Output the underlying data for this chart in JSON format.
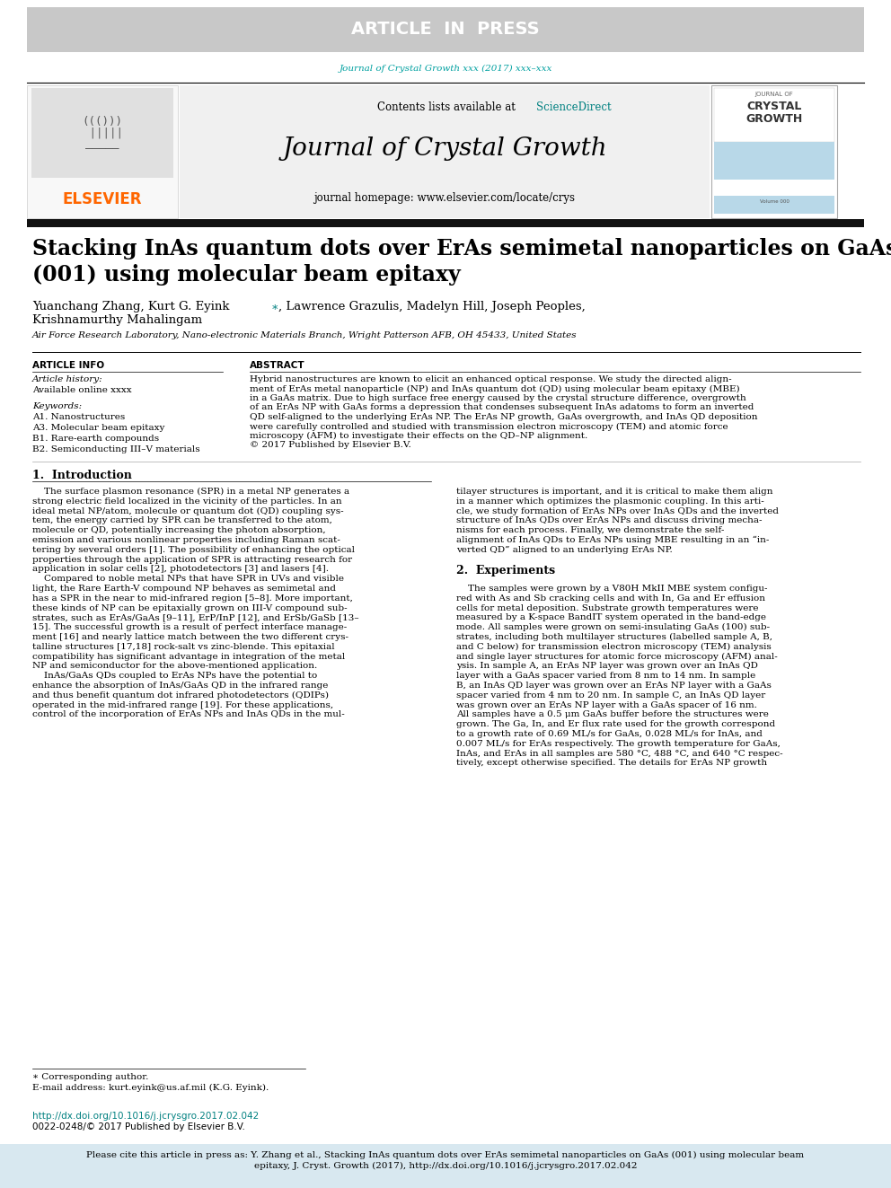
{
  "article_in_press_bg": "#c8c8c8",
  "article_in_press_text": "ARTICLE  IN  PRESS",
  "article_in_press_color": "#ffffff",
  "journal_citation": "Journal of Crystal Growth xxx (2017) xxx–xxx",
  "journal_citation_color": "#00a0a0",
  "journal_name": "Journal of Crystal Growth",
  "journal_homepage": "journal homepage: www.elsevier.com/locate/crys",
  "contents_line": "Contents lists available at ",
  "elsevier_color": "#ff6600",
  "sciencedirect_color": "#008080",
  "header_bg": "#f0f0f0",
  "black_bar_color": "#111111",
  "paper_title": "Stacking InAs quantum dots over ErAs semimetal nanoparticles on GaAs\n(001) using molecular beam epitaxy",
  "affiliation": "Air Force Research Laboratory, Nano-electronic Materials Branch, Wright Patterson AFB, OH 45433, United States",
  "article_info_header": "ARTICLE INFO",
  "abstract_header": "ABSTRACT",
  "keywords": "A1. Nanostructures\nA3. Molecular beam epitaxy\nB1. Rare-earth compounds\nB2. Semiconducting III–V materials",
  "footnote_star": "∗ Corresponding author.",
  "footnote_email": "E-mail address: kurt.eyink@us.af.mil (K.G. Eyink).",
  "doi_text": "http://dx.doi.org/10.1016/j.jcrysgro.2017.02.042",
  "issn_text": "0022-0248/© 2017 Published by Elsevier B.V.",
  "bottom_bar_text1": "Please cite this article in press as: Y. Zhang et al., Stacking InAs quantum dots over ErAs semimetal nanoparticles on GaAs (001) using molecular beam",
  "bottom_bar_text2": "epitaxy, J. Cryst. Growth (2017), http://dx.doi.org/10.1016/j.jcrysgro.2017.02.042",
  "bottom_bar_bg": "#d8e8f0",
  "teal_color": "#008080",
  "abstract_lines": [
    "Hybrid nanostructures are known to elicit an enhanced optical response. We study the directed align-",
    "ment of ErAs metal nanoparticle (NP) and InAs quantum dot (QD) using molecular beam epitaxy (MBE)",
    "in a GaAs matrix. Due to high surface free energy caused by the crystal structure difference, overgrowth",
    "of an ErAs NP with GaAs forms a depression that condenses subsequent InAs adatoms to form an inverted",
    "QD self-aligned to the underlying ErAs NP. The ErAs NP growth, GaAs overgrowth, and InAs QD deposition",
    "were carefully controlled and studied with transmission electron microscopy (TEM) and atomic force",
    "microscopy (AFM) to investigate their effects on the QD–NP alignment.",
    "© 2017 Published by Elsevier B.V."
  ],
  "col1_lines": [
    "    The surface plasmon resonance (SPR) in a metal NP generates a",
    "strong electric field localized in the vicinity of the particles. In an",
    "ideal metal NP/atom, molecule or quantum dot (QD) coupling sys-",
    "tem, the energy carried by SPR can be transferred to the atom,",
    "molecule or QD, potentially increasing the photon absorption,",
    "emission and various nonlinear properties including Raman scat-",
    "tering by several orders [1]. The possibility of enhancing the optical",
    "properties through the application of SPR is attracting research for",
    "application in solar cells [2], photodetectors [3] and lasers [4].",
    "    Compared to noble metal NPs that have SPR in UVs and visible",
    "light, the Rare Earth-V compound NP behaves as semimetal and",
    "has a SPR in the near to mid-infrared region [5–8]. More important,",
    "these kinds of NP can be epitaxially grown on III-V compound sub-",
    "strates, such as ErAs/GaAs [9–11], ErP/InP [12], and ErSb/GaSb [13–",
    "15]. The successful growth is a result of perfect interface manage-",
    "ment [16] and nearly lattice match between the two different crys-",
    "talline structures [17,18] rock-salt vs zinc-blende. This epitaxial",
    "compatibility has significant advantage in integration of the metal",
    "NP and semiconductor for the above-mentioned application.",
    "    InAs/GaAs QDs coupled to ErAs NPs have the potential to",
    "enhance the absorption of InAs/GaAs QD in the infrared range",
    "and thus benefit quantum dot infrared photodetectors (QDIPs)",
    "operated in the mid-infrared range [19]. For these applications,",
    "control of the incorporation of ErAs NPs and InAs QDs in the mul-"
  ],
  "col2_lines": [
    "tilayer structures is important, and it is critical to make them align",
    "in a manner which optimizes the plasmonic coupling. In this arti-",
    "cle, we study formation of ErAs NPs over InAs QDs and the inverted",
    "structure of InAs QDs over ErAs NPs and discuss driving mecha-",
    "nisms for each process. Finally, we demonstrate the self-",
    "alignment of InAs QDs to ErAs NPs using MBE resulting in an “in-",
    "verted QD” aligned to an underlying ErAs NP.",
    "",
    "2.  Experiments",
    "",
    "    The samples were grown by a V80H MkII MBE system configu-",
    "red with As and Sb cracking cells and with In, Ga and Er effusion",
    "cells for metal deposition. Substrate growth temperatures were",
    "measured by a K-space BandIT system operated in the band-edge",
    "mode. All samples were grown on semi-insulating GaAs (100) sub-",
    "strates, including both multilayer structures (labelled sample A, B,",
    "and C below) for transmission electron microscopy (TEM) analysis",
    "and single layer structures for atomic force microscopy (AFM) anal-",
    "ysis. In sample A, an ErAs NP layer was grown over an InAs QD",
    "layer with a GaAs spacer varied from 8 nm to 14 nm. In sample",
    "B, an InAs QD layer was grown over an ErAs NP layer with a GaAs",
    "spacer varied from 4 nm to 20 nm. In sample C, an InAs QD layer",
    "was grown over an ErAs NP layer with a GaAs spacer of 16 nm.",
    "All samples have a 0.5 μm GaAs buffer before the structures were",
    "grown. The Ga, In, and Er flux rate used for the growth correspond",
    "to a growth rate of 0.69 ML/s for GaAs, 0.028 ML/s for InAs, and",
    "0.007 ML/s for ErAs respectively. The growth temperature for GaAs,",
    "InAs, and ErAs in all samples are 580 °C, 488 °C, and 640 °C respec-",
    "tively, except otherwise specified. The details for ErAs NP growth"
  ]
}
